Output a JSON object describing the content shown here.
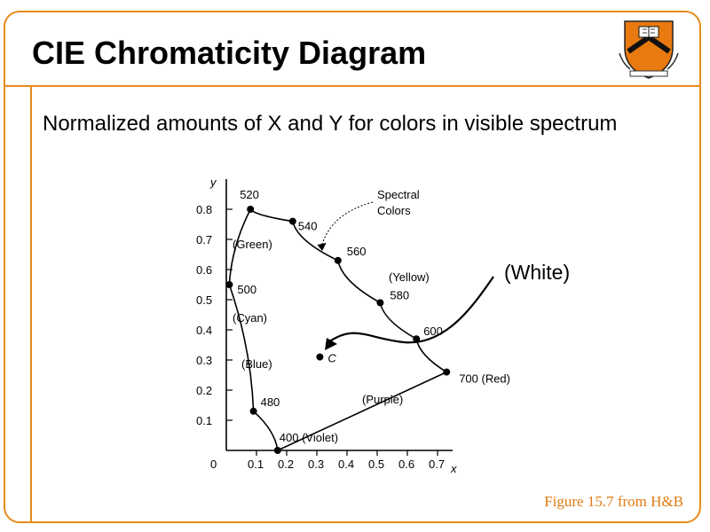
{
  "slide": {
    "title": "CIE Chromaticity Diagram",
    "subtitle": "Normalized amounts of X and Y for colors in visible spectrum",
    "caption": "Figure 15.7 from H&B",
    "annotation": "(White)",
    "accent_color": "#e88a1a",
    "logo_icon": "princeton-shield-icon"
  },
  "diagram": {
    "x_axis_label": "x",
    "y_axis_label": "y",
    "origin_label": "0",
    "x_ticks": [
      "0.1",
      "0.2",
      "0.3",
      "0.4",
      "0.5",
      "0.6",
      "0.7"
    ],
    "y_ticks": [
      "0.1",
      "0.2",
      "0.3",
      "0.4",
      "0.5",
      "0.6",
      "0.7",
      "0.8"
    ],
    "spectral_points": [
      {
        "label": "400 (Violet)",
        "x": 0.17,
        "y": 0.0
      },
      {
        "label": "480",
        "x": 0.09,
        "y": 0.13
      },
      {
        "label": "500",
        "x": 0.01,
        "y": 0.55
      },
      {
        "label": "520",
        "x": 0.08,
        "y": 0.8
      },
      {
        "label": "540",
        "x": 0.22,
        "y": 0.76
      },
      {
        "label": "560",
        "x": 0.37,
        "y": 0.63
      },
      {
        "label": "580",
        "x": 0.51,
        "y": 0.49
      },
      {
        "label": "600",
        "x": 0.63,
        "y": 0.37
      },
      {
        "label": "700 (Red)",
        "x": 0.73,
        "y": 0.26
      }
    ],
    "white_point": {
      "label": "C",
      "x": 0.31,
      "y": 0.31
    },
    "region_labels": [
      "(Green)",
      "(Cyan)",
      "(Blue)",
      "(Yellow)",
      "(Purple)"
    ],
    "spectral_colors_label_line1": "Spectral",
    "spectral_colors_label_line2": "Colors"
  }
}
